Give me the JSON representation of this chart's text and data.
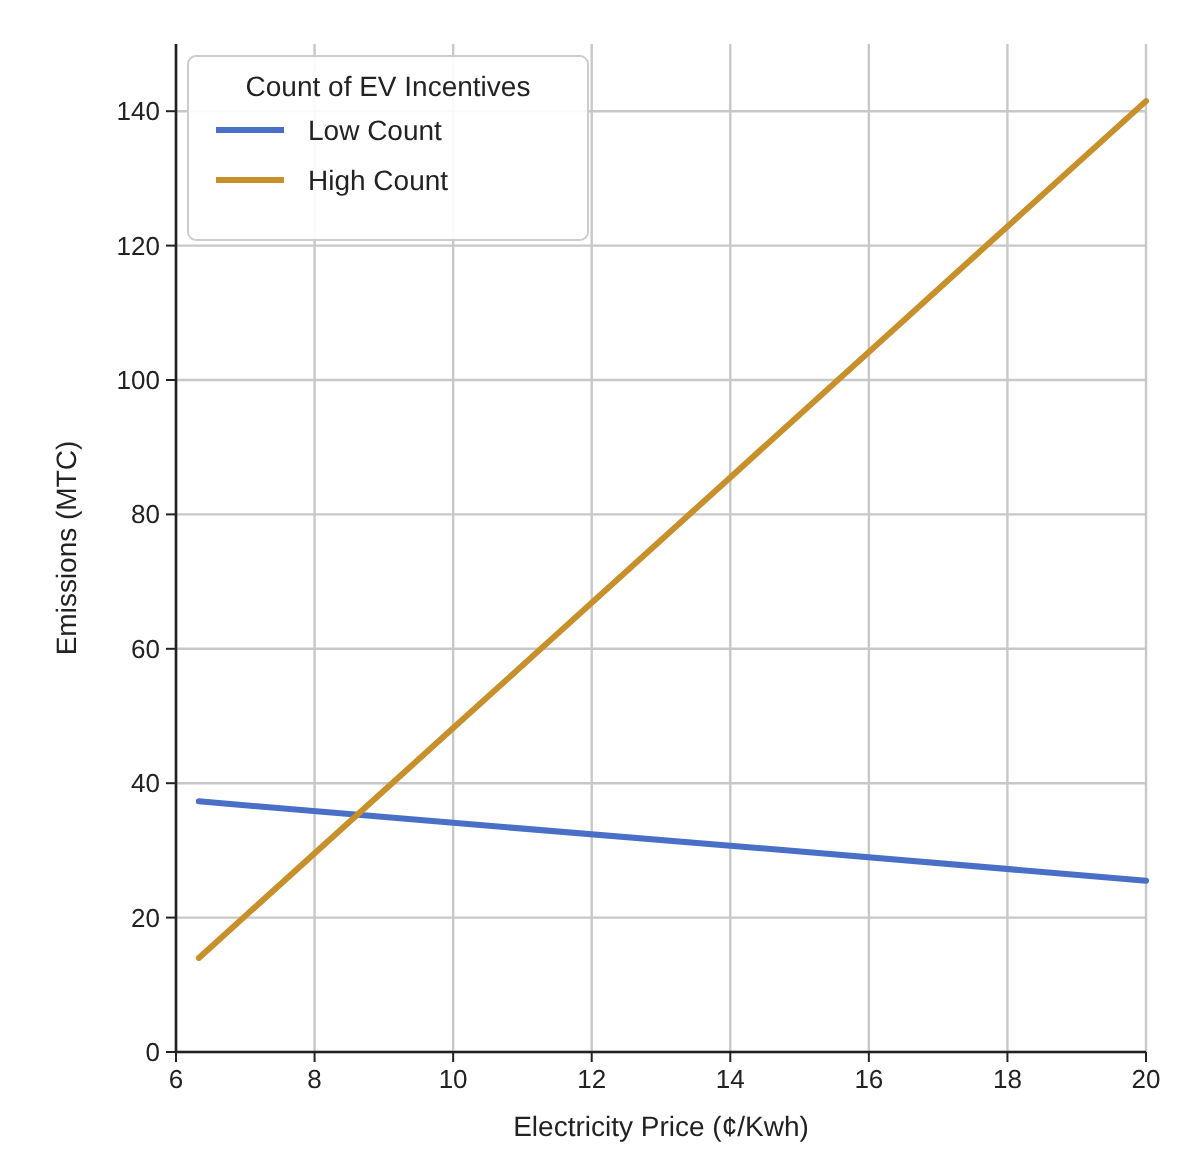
{
  "chart_data": {
    "type": "line",
    "xlabel": "Electricity Price (¢/Kwh)",
    "ylabel": "Emissions (MTC)",
    "legend_title": "Count of EV Incentives",
    "legend": "top left",
    "grid": true,
    "xlim": [
      6,
      20
    ],
    "xticks": [
      6,
      8,
      10,
      12,
      14,
      16,
      18,
      20
    ],
    "ylim": [
      0,
      150
    ],
    "yticks": [
      0,
      20,
      40,
      60,
      80,
      100,
      120,
      140
    ],
    "series": [
      {
        "name": "Low Count",
        "color": "#4a6fc7",
        "x": [
          6.33,
          10,
          14,
          20
        ],
        "values": [
          37.3,
          34.1,
          30.7,
          25.5
        ]
      },
      {
        "name": "High Count",
        "color": "#c8902a",
        "x": [
          6.33,
          10,
          14,
          20
        ],
        "values": [
          14,
          48.2,
          85.5,
          141.5
        ]
      }
    ]
  }
}
